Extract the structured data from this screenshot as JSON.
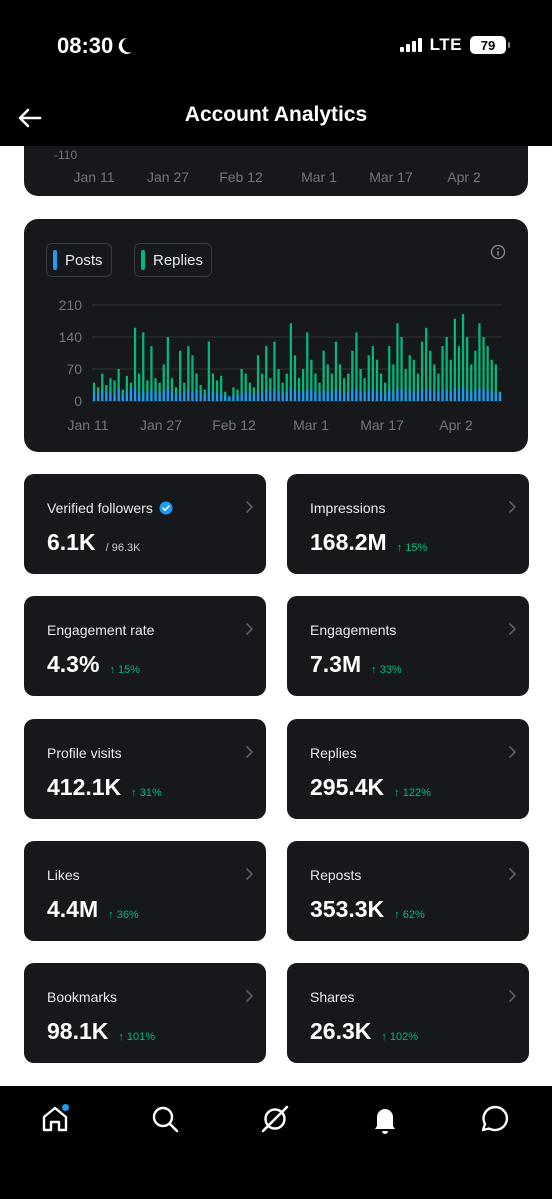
{
  "status": {
    "time": "08:30",
    "network": "LTE",
    "battery": "79"
  },
  "header": {
    "title": "Account Analytics"
  },
  "top_chart": {
    "tick": "-110",
    "x_labels": [
      "Jan 11",
      "Jan 27",
      "Feb 12",
      "Mar 1",
      "Mar 17",
      "Apr 2"
    ]
  },
  "legend": {
    "posts": "Posts",
    "replies": "Replies"
  },
  "colors": {
    "posts": "#1d9bf0",
    "replies": "#00ba7c",
    "up": "#00ba7c",
    "card": "#17181c"
  },
  "chart_data": {
    "type": "bar",
    "y_ticks": [
      "210",
      "140",
      "70",
      "0"
    ],
    "ylim": [
      0,
      210
    ],
    "x_labels": [
      "Jan 11",
      "Jan 27",
      "Feb 12",
      "Mar 1",
      "Mar 17",
      "Apr 2"
    ],
    "series": [
      {
        "name": "Posts",
        "values": [
          20,
          15,
          25,
          18,
          22,
          16,
          28,
          14,
          20,
          24,
          30,
          18,
          22,
          16,
          25,
          20,
          18,
          24,
          28,
          20,
          15,
          22,
          18,
          26,
          20,
          24,
          18,
          14,
          22,
          20,
          18,
          16,
          12,
          10,
          14,
          12,
          18,
          20,
          16,
          14,
          22,
          18,
          24,
          20,
          26,
          22,
          18,
          20,
          28,
          24,
          20,
          22,
          26,
          24,
          20,
          18,
          24,
          22,
          20,
          26,
          22,
          18,
          20,
          24,
          28,
          22,
          20,
          24,
          26,
          22,
          20,
          18,
          24,
          22,
          28,
          26,
          20,
          24,
          22,
          20,
          26,
          28,
          24,
          22,
          20,
          24,
          26,
          22,
          28,
          24,
          30,
          26,
          22,
          24,
          28,
          26,
          24,
          22,
          20,
          18
        ]
      },
      {
        "name": "Replies",
        "values": [
          40,
          30,
          60,
          35,
          50,
          45,
          70,
          25,
          55,
          40,
          160,
          60,
          150,
          45,
          120,
          50,
          40,
          80,
          140,
          50,
          30,
          110,
          40,
          120,
          100,
          60,
          35,
          25,
          130,
          60,
          45,
          55,
          20,
          10,
          30,
          25,
          70,
          60,
          40,
          30,
          100,
          60,
          120,
          50,
          130,
          70,
          40,
          60,
          170,
          100,
          50,
          70,
          150,
          90,
          60,
          40,
          110,
          80,
          60,
          130,
          80,
          50,
          60,
          110,
          150,
          70,
          50,
          100,
          120,
          90,
          60,
          40,
          120,
          80,
          170,
          140,
          70,
          100,
          90,
          60,
          130,
          160,
          110,
          80,
          60,
          120,
          140,
          90,
          180,
          120,
          190,
          140,
          80,
          110,
          170,
          140,
          120,
          90,
          80,
          20
        ]
      }
    ]
  },
  "metrics": [
    {
      "label": "Verified followers",
      "value": "6.1K",
      "extra": "/ 96.3K",
      "kind": "total"
    },
    {
      "label": "Impressions",
      "value": "168.2M",
      "extra": "↑ 15%",
      "kind": "up"
    },
    {
      "label": "Engagement rate",
      "value": "4.3%",
      "extra": "↑ 15%",
      "kind": "up"
    },
    {
      "label": "Engagements",
      "value": "7.3M",
      "extra": "↑ 33%",
      "kind": "up"
    },
    {
      "label": "Profile visits",
      "value": "412.1K",
      "extra": "↑ 31%",
      "kind": "up"
    },
    {
      "label": "Replies",
      "value": "295.4K",
      "extra": "↑ 122%",
      "kind": "up"
    },
    {
      "label": "Likes",
      "value": "4.4M",
      "extra": "↑ 36%",
      "kind": "up"
    },
    {
      "label": "Reposts",
      "value": "353.3K",
      "extra": "↑ 62%",
      "kind": "up"
    },
    {
      "label": "Bookmarks",
      "value": "98.1K",
      "extra": "↑ 101%",
      "kind": "up"
    },
    {
      "label": "Shares",
      "value": "26.3K",
      "extra": "↑ 102%",
      "kind": "up"
    }
  ],
  "nav": {
    "icons": [
      "home-icon",
      "search-icon",
      "grok-icon",
      "notifications-icon",
      "messages-icon"
    ]
  }
}
